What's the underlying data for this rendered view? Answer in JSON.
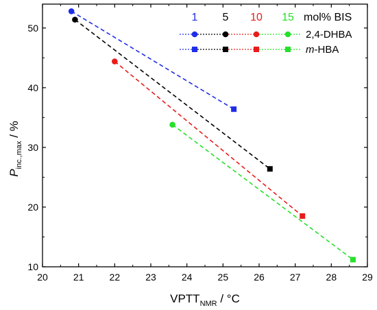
{
  "chart_data": {
    "type": "scatter",
    "xlabel": {
      "main": "VPTT",
      "sub": "NMR",
      "unit": " / °C"
    },
    "ylabel": {
      "main": "P",
      "sub": "inc.,max",
      "unit": " / %"
    },
    "xlim": [
      20,
      29
    ],
    "ylim": [
      10,
      54
    ],
    "xticks": [
      20,
      21,
      22,
      23,
      24,
      25,
      26,
      27,
      28,
      29
    ],
    "yticks": [
      10,
      20,
      30,
      40,
      50
    ],
    "grid": false,
    "legend": {
      "placement": "top-right",
      "header_label": "mol% BIS",
      "concentration_labels": [
        "1",
        "5",
        "10",
        "15"
      ],
      "concentration_colors": [
        "#1f2de8",
        "#000000",
        "#e81c1c",
        "#27e02b"
      ],
      "rows": [
        {
          "label": "2,4-DHBA",
          "marker": "circle"
        },
        {
          "label_prefix": "m",
          "label_rest": "-HBA",
          "marker": "square"
        }
      ]
    },
    "series": [
      {
        "bis": "1",
        "color": "#1f2de8",
        "points": [
          {
            "x": 20.8,
            "y": 52.8,
            "marker": "circle"
          },
          {
            "x": 25.3,
            "y": 36.4,
            "marker": "square"
          }
        ]
      },
      {
        "bis": "5",
        "color": "#000000",
        "points": [
          {
            "x": 20.9,
            "y": 51.4,
            "marker": "circle"
          },
          {
            "x": 26.3,
            "y": 26.4,
            "marker": "square"
          }
        ]
      },
      {
        "bis": "10",
        "color": "#e81c1c",
        "points": [
          {
            "x": 22.0,
            "y": 44.4,
            "marker": "circle"
          },
          {
            "x": 27.2,
            "y": 18.5,
            "marker": "square"
          }
        ]
      },
      {
        "bis": "15",
        "color": "#27e02b",
        "points": [
          {
            "x": 23.6,
            "y": 33.8,
            "marker": "circle"
          },
          {
            "x": 28.6,
            "y": 11.2,
            "marker": "square"
          }
        ]
      }
    ]
  }
}
